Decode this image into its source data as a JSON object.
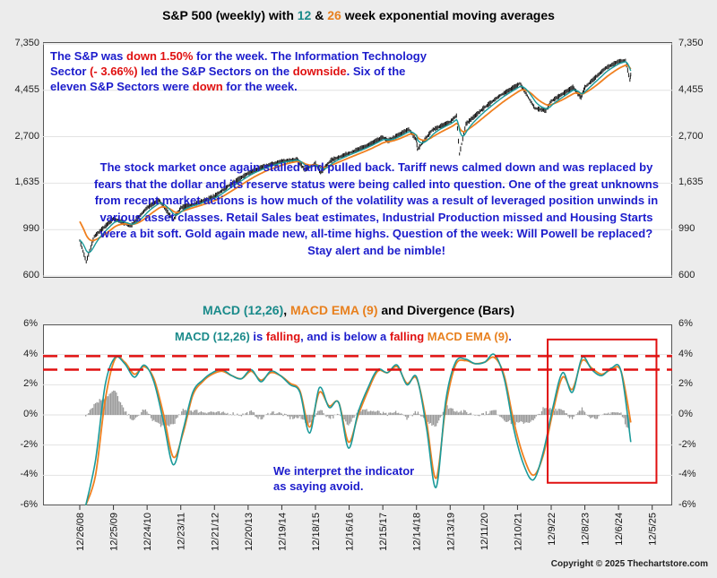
{
  "title": {
    "prefix": "S&P 500 (weekly) with ",
    "n1": "12",
    "amp": " & ",
    "n2": "26",
    "suffix": " week exponential moving averages"
  },
  "macd_title": {
    "p1": "MACD (12,26)",
    "sep1": ", ",
    "p2": "MACD EMA (9)",
    "p3": " and Divergence (Bars)"
  },
  "annotation_weekly": {
    "t1": "The S&P was ",
    "t2": "down 1.50%",
    "t3": " for the week. The Information Technology Sector ",
    "t4": "(- 3.66%)",
    "t5": " led the S&P Sectors on the ",
    "t6": "downside",
    "t7": ".  Six of the eleven S&P Sectors were ",
    "t8": "down",
    "t9": " for the week."
  },
  "annotation_market": "The stock market once again stalled and pulled back. Tariff news calmed down and was replaced by fears that the dollar and its reserve status were being called into question.  One of the great unknowns from recent market actions is how much of the volatility was a result of leveraged position unwinds in various asset classes.  Retail Sales beat estimates, Industrial Production missed and Housing Starts were a bit soft.  Gold again made new, all-time highs.  Question of the week:  Will Powell be replaced?  Stay alert and be nimble!",
  "annotation_macd": {
    "t1": "MACD (12,26)",
    "t2": " is ",
    "t3": "falling",
    "t4": ", and is below a ",
    "t5": "falling",
    "t6": " ",
    "t7": "MACD EMA (9)",
    "t8": "."
  },
  "annotation_interpret": "We interpret the indicator as saying avoid.",
  "copyright": "Copyright © 2025 Thechartstore.com",
  "colors": {
    "price": "#111111",
    "ema12": "#1a9a9a",
    "ema26": "#f08020",
    "macd": "#1a9a9a",
    "signal": "#f08020",
    "bars": "#9a9a9a",
    "highlight": "#e01010",
    "annotation": "#1c1ccc"
  },
  "chart_data": [
    {
      "type": "line",
      "title": "S&P 500 (weekly) with 12 & 26 week exponential moving averages",
      "scale": "log",
      "y_ticks": [
        "600",
        "990",
        "1,635",
        "2,700",
        "4,455",
        "7,350"
      ],
      "y_tick_values": [
        600,
        990,
        1635,
        2700,
        4455,
        7350
      ],
      "x": [
        "2008-12-26",
        "2009-03-06",
        "2009-06-01",
        "2009-12-25",
        "2010-07-01",
        "2010-12-24",
        "2011-05-01",
        "2011-10-03",
        "2011-12-23",
        "2012-06-01",
        "2012-12-21",
        "2013-06-01",
        "2013-12-20",
        "2014-06-01",
        "2014-12-19",
        "2015-06-01",
        "2015-08-24",
        "2015-12-18",
        "2016-02-11",
        "2016-06-01",
        "2016-12-16",
        "2017-06-01",
        "2017-12-15",
        "2018-02-09",
        "2018-09-20",
        "2018-12-14",
        "2018-12-24",
        "2019-06-01",
        "2019-12-13",
        "2020-02-19",
        "2020-03-23",
        "2020-06-01",
        "2020-12-11",
        "2021-06-01",
        "2021-12-10",
        "2022-01-03",
        "2022-06-16",
        "2022-10-12",
        "2022-12-09",
        "2023-07-31",
        "2023-10-27",
        "2023-12-08",
        "2024-07-16",
        "2024-12-06",
        "2025-02-19",
        "2025-04-08",
        "2025-04-17"
      ],
      "x_ticks": [
        "12/26/08",
        "12/25/09",
        "12/24/10",
        "12/23/11",
        "12/21/12",
        "12/20/13",
        "12/19/14",
        "12/18/15",
        "12/16/16",
        "12/15/17",
        "12/14/18",
        "12/13/19",
        "12/11/20",
        "12/10/21",
        "12/9/22",
        "12/8/23",
        "12/6/24",
        "12/5/25"
      ],
      "series": [
        {
          "name": "",
          "values": [
            880,
            700,
            920,
            1115,
            1030,
            1255,
            1360,
            1100,
            1255,
            1310,
            1420,
            1600,
            1820,
            1950,
            2070,
            2110,
            1890,
            2020,
            1830,
            2090,
            2260,
            2420,
            2680,
            2580,
            2930,
            2600,
            2350,
            2900,
            3170,
            3390,
            2240,
            3100,
            3680,
            4200,
            4710,
            4800,
            3670,
            3580,
            3960,
            4600,
            4120,
            4600,
            5650,
            6090,
            6150,
            4980,
            5280
          ]
        }
      ]
    },
    {
      "type": "line",
      "title": "MACD (12,26), MACD EMA (9) and Divergence (Bars)",
      "y_ticks": [
        "6%",
        "4%",
        "2%",
        "0%",
        "-2%",
        "-4%",
        "-6%"
      ],
      "ylim": [
        -6,
        6
      ],
      "x_ticks": [
        "12/26/08",
        "12/25/09",
        "12/24/10",
        "12/23/11",
        "12/21/12",
        "12/20/13",
        "12/19/14",
        "12/18/15",
        "12/16/16",
        "12/15/17",
        "12/14/18",
        "12/13/19",
        "12/11/20",
        "12/10/21",
        "12/9/22",
        "12/8/23",
        "12/6/24",
        "12/5/25"
      ],
      "reference_lines": [
        3.9,
        3.0
      ],
      "series": [
        {
          "name": "MACD (12,26)",
          "values": [
            -6,
            -3,
            2,
            3.8,
            3.4,
            2.5,
            3.3,
            2.2,
            -0.5,
            -3.3,
            -1,
            1.5,
            2.3,
            2.8,
            3.0,
            2.6,
            2.4,
            3.0,
            2.2,
            2.9,
            2.6,
            2.0,
            1.5,
            -1.2,
            1.8,
            0.5,
            0.8,
            -2.2,
            0.2,
            1.8,
            3.0,
            2.8,
            3.3,
            2.0,
            2.5,
            -0.8,
            -4.8,
            1.0,
            3.5,
            3.7,
            3.4,
            3.5,
            4.0,
            2.4,
            -1.0,
            -3.3,
            -4.3,
            -2.5,
            0.5,
            2.8,
            1.5,
            3.8,
            3.0,
            2.6,
            3.1,
            2.9,
            -1.8
          ]
        },
        {
          "name": "MACD EMA (9)",
          "values": [
            -6,
            -4,
            1,
            3.7,
            3.5,
            2.7,
            3.2,
            2.4,
            0,
            -2.8,
            -1.2,
            1.3,
            2.2,
            2.7,
            2.9,
            2.6,
            2.4,
            2.9,
            2.3,
            2.8,
            2.6,
            2.1,
            1.6,
            -0.8,
            1.5,
            0.6,
            0.8,
            -1.8,
            0,
            1.6,
            2.9,
            2.8,
            3.2,
            2.1,
            2.4,
            -0.4,
            -4.2,
            0.6,
            3.3,
            3.6,
            3.4,
            3.5,
            3.8,
            2.6,
            -0.5,
            -2.8,
            -4.0,
            -2.7,
            0.2,
            2.5,
            1.7,
            3.6,
            3.1,
            2.7,
            3.0,
            2.9,
            -0.5
          ]
        },
        {
          "name": "Divergence (Bars)",
          "values": [
            0,
            0.8,
            1.2,
            1.6,
            0.2,
            -0.4,
            0.4,
            -0.4,
            -0.8,
            -0.6,
            0.3,
            0.3,
            0.2,
            0.2,
            0.1,
            0.1,
            0,
            0.2,
            -0.3,
            0.2,
            0.1,
            -0.2,
            -0.2,
            -0.6,
            0.4,
            -0.2,
            0,
            -0.6,
            0.3,
            0.3,
            0.2,
            0,
            0.2,
            -0.2,
            0.2,
            -0.5,
            -0.7,
            0.6,
            0.3,
            0.2,
            0,
            0.1,
            0.3,
            -0.3,
            -0.6,
            -0.5,
            -0.4,
            0.4,
            0.4,
            0.4,
            -0.3,
            0.4,
            -0.2,
            -0.1,
            0.2,
            0.1,
            -1.3
          ]
        }
      ]
    }
  ]
}
